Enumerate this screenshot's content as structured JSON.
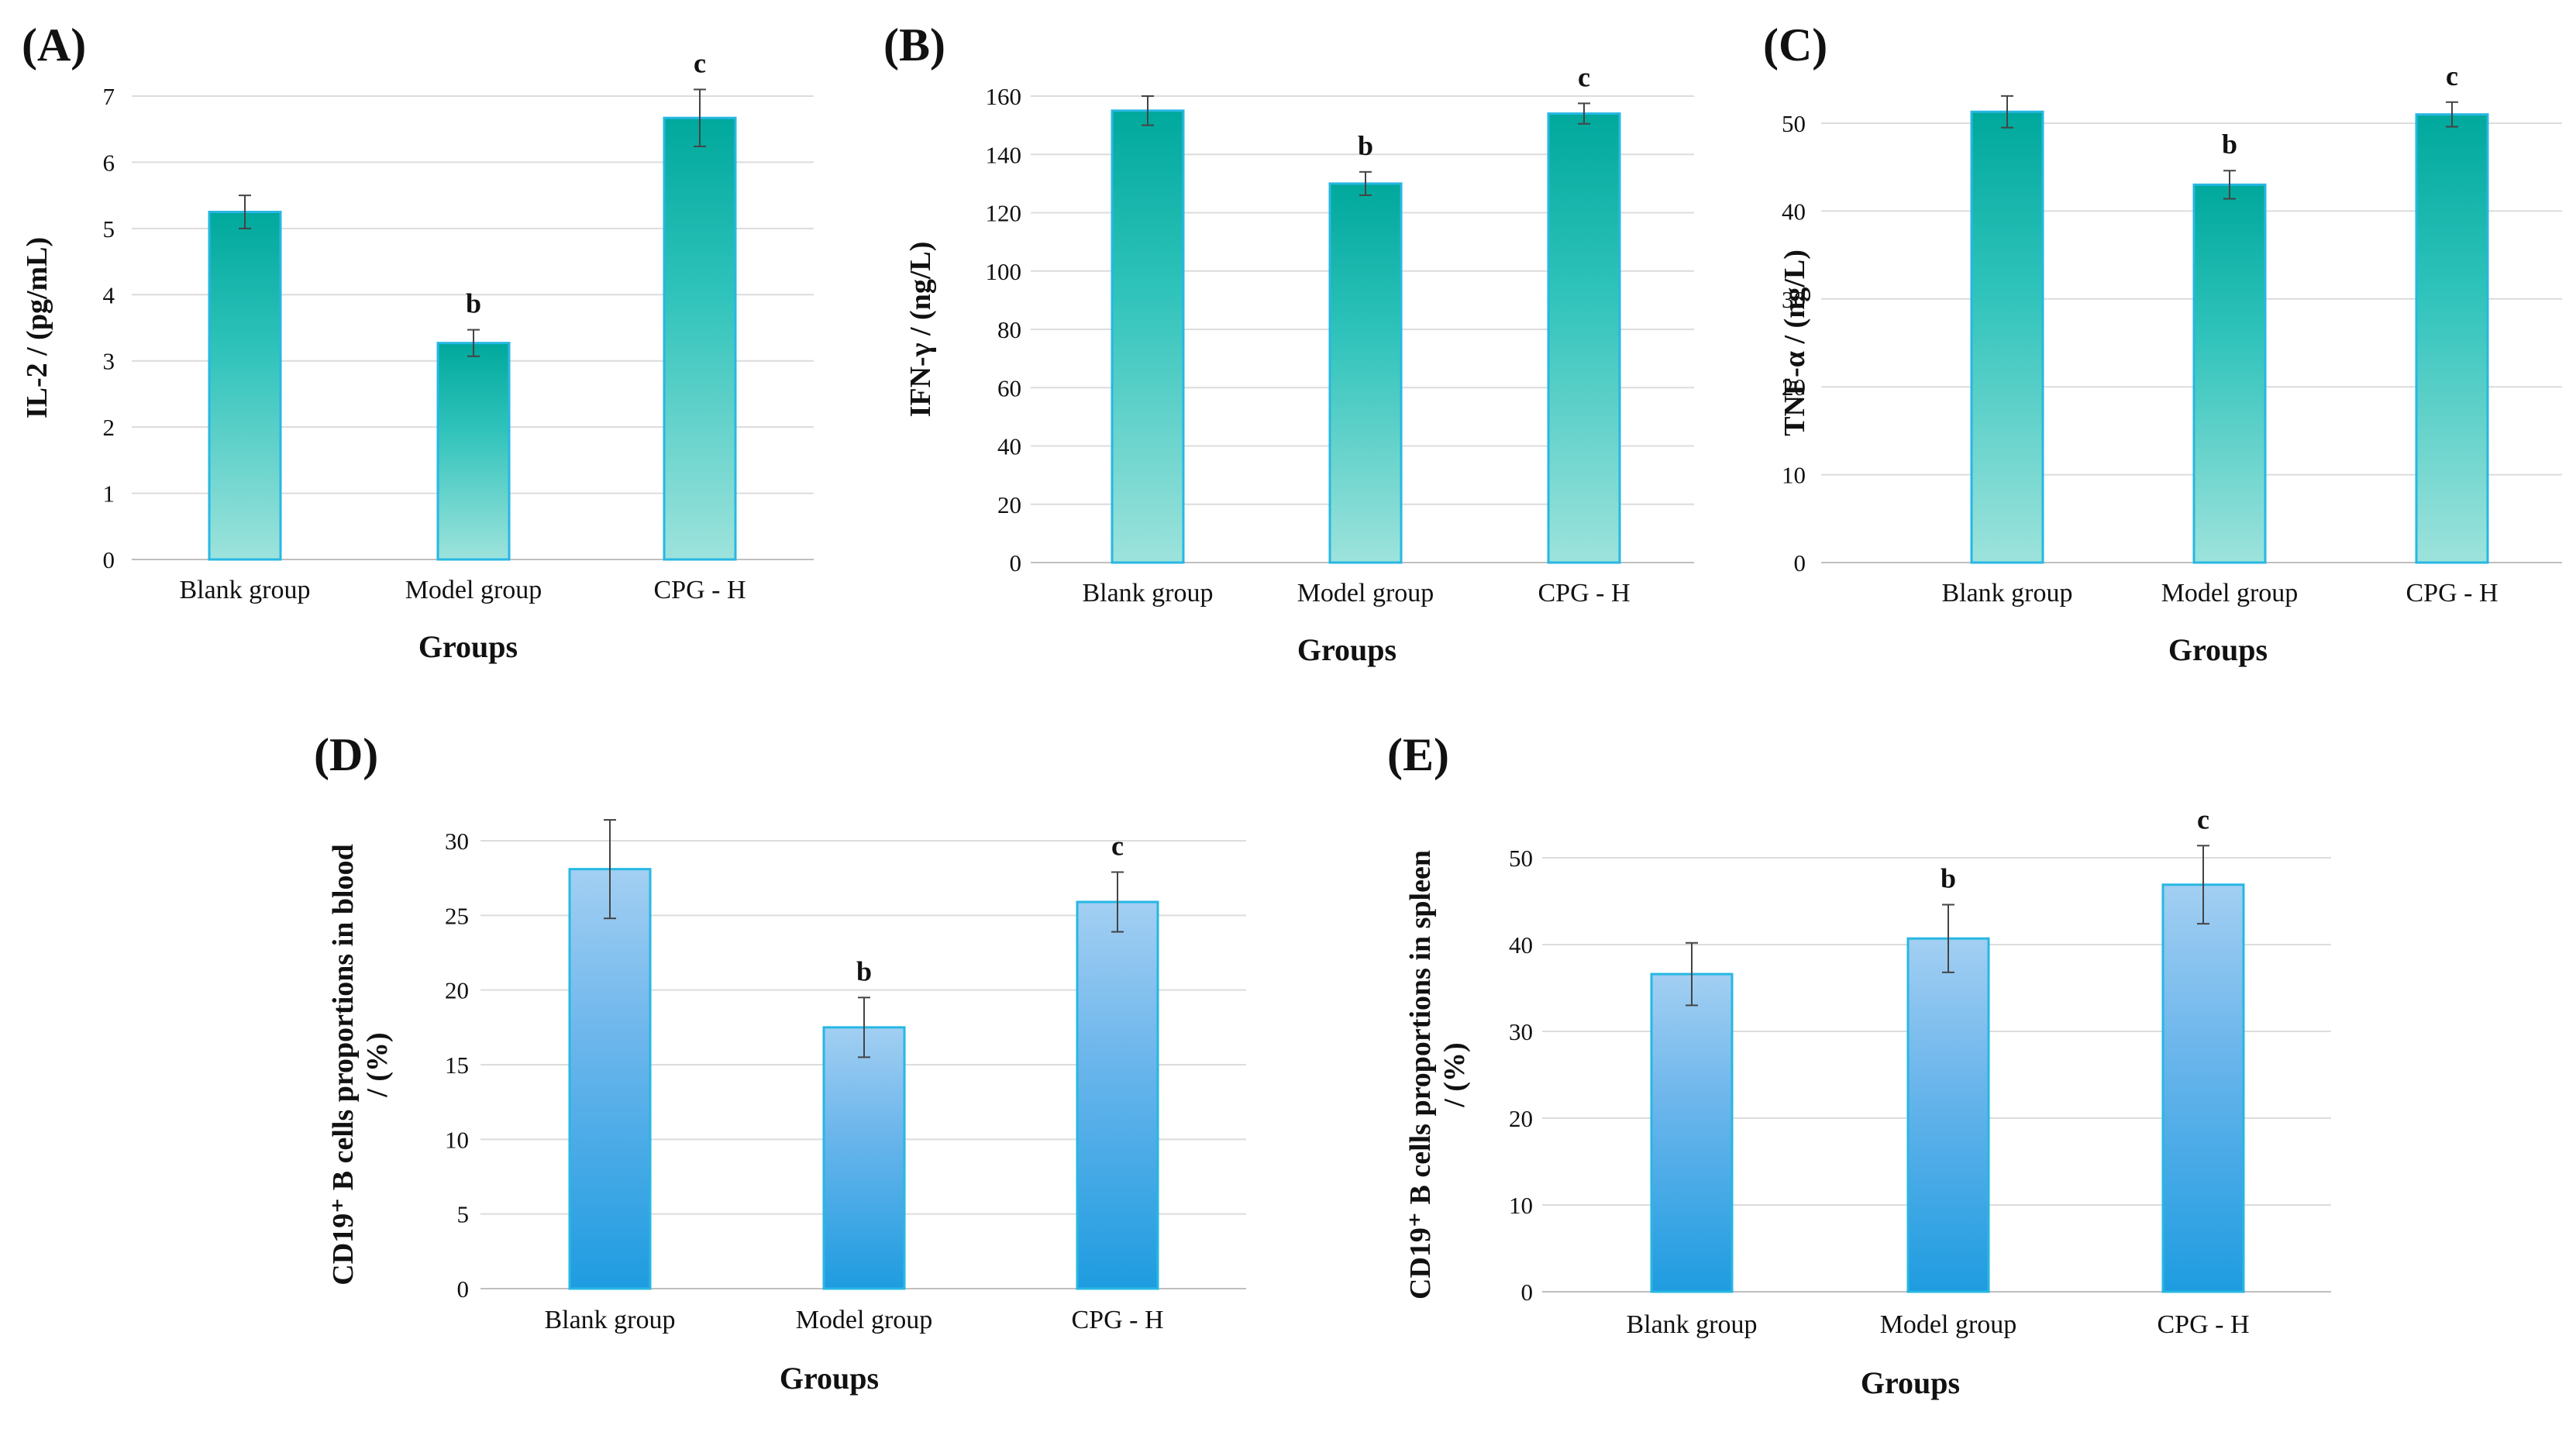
{
  "figure": {
    "description": ""
  },
  "chart_data": [
    {
      "type": "bar",
      "panel": "(A)",
      "title": "",
      "xlabel": "Groups",
      "ylabel": "IL-2 / (pg/mL)",
      "categories": [
        "Blank group",
        "Model group",
        "CPG - H"
      ],
      "values": [
        5.25,
        3.27,
        6.67
      ],
      "errors": [
        0.25,
        0.2,
        0.43
      ],
      "significance": [
        "",
        "b",
        "c"
      ],
      "ylim": [
        0,
        7
      ],
      "yticks": [
        0,
        1,
        2,
        3,
        4,
        5,
        6,
        7
      ],
      "grid": true,
      "colors": {
        "top": "#00A89C",
        "mid": "#2FC3BB",
        "bottom": "#9DE3DC",
        "stroke": "#27B7E3"
      }
    },
    {
      "type": "bar",
      "panel": "(B)",
      "title": "",
      "xlabel": "Groups",
      "ylabel": "IFN-γ / (ng/L)",
      "categories": [
        "Blank group",
        "Model group",
        "CPG - H"
      ],
      "values": [
        155,
        130,
        154
      ],
      "errors": [
        5,
        4,
        3.5
      ],
      "significance": [
        "",
        "b",
        "c"
      ],
      "ylim": [
        0,
        160
      ],
      "yticks": [
        0,
        20,
        40,
        60,
        80,
        100,
        120,
        140,
        160
      ],
      "grid": true,
      "colors": {
        "top": "#00A89C",
        "mid": "#2FC3BB",
        "bottom": "#9DE3DC",
        "stroke": "#27B7E3"
      }
    },
    {
      "type": "bar",
      "panel": "(C)",
      "title": "",
      "xlabel": "Groups",
      "ylabel": "TNF-α / (ng/L)",
      "categories": [
        "Blank group",
        "Model group",
        "CPG - H"
      ],
      "values": [
        51.3,
        43,
        51
      ],
      "errors": [
        1.8,
        1.6,
        1.4
      ],
      "significance": [
        "",
        "b",
        "c"
      ],
      "ylim": [
        0,
        50
      ],
      "yticks": [
        0,
        10,
        20,
        30,
        40,
        50
      ],
      "grid": true,
      "colors": {
        "top": "#00A89C",
        "mid": "#2FC3BB",
        "bottom": "#9DE3DC",
        "stroke": "#27B7E3"
      }
    },
    {
      "type": "bar",
      "panel": "(D)",
      "title": "",
      "xlabel": "Groups",
      "ylabel": "CD19⁺ B cells proportions in blood / (%)",
      "ylabel_lines": [
        "CD19⁺ B cells proportions in blood",
        "/ (%)"
      ],
      "categories": [
        "Blank group",
        "Model group",
        "CPG - H"
      ],
      "values": [
        28.1,
        17.5,
        25.9
      ],
      "errors": [
        3.3,
        2.0,
        2.0
      ],
      "significance": [
        "",
        "b",
        "c"
      ],
      "ylim": [
        0,
        30
      ],
      "yticks": [
        0,
        5,
        10,
        15,
        20,
        25,
        30
      ],
      "grid": true,
      "colors": {
        "top": "#A3CFF2",
        "mid": "#6CB6EC",
        "bottom": "#1E9CE0",
        "stroke": "#27B7E3"
      }
    },
    {
      "type": "bar",
      "panel": "(E)",
      "title": "",
      "xlabel": "Groups",
      "ylabel": "CD19⁺ B cells proportions in spleen / (%)",
      "ylabel_lines": [
        "CD19⁺ B cells proportions in spleen",
        "/ (%)"
      ],
      "categories": [
        "Blank group",
        "Model group",
        "CPG - H"
      ],
      "values": [
        36.6,
        40.7,
        46.9
      ],
      "errors": [
        3.6,
        3.9,
        4.5
      ],
      "significance": [
        "",
        "b",
        "c"
      ],
      "ylim": [
        0,
        50
      ],
      "yticks": [
        0,
        10,
        20,
        30,
        40,
        50
      ],
      "grid": true,
      "colors": {
        "top": "#A3CFF2",
        "mid": "#6CB6EC",
        "bottom": "#1E9CE0",
        "stroke": "#27B7E3"
      }
    }
  ]
}
